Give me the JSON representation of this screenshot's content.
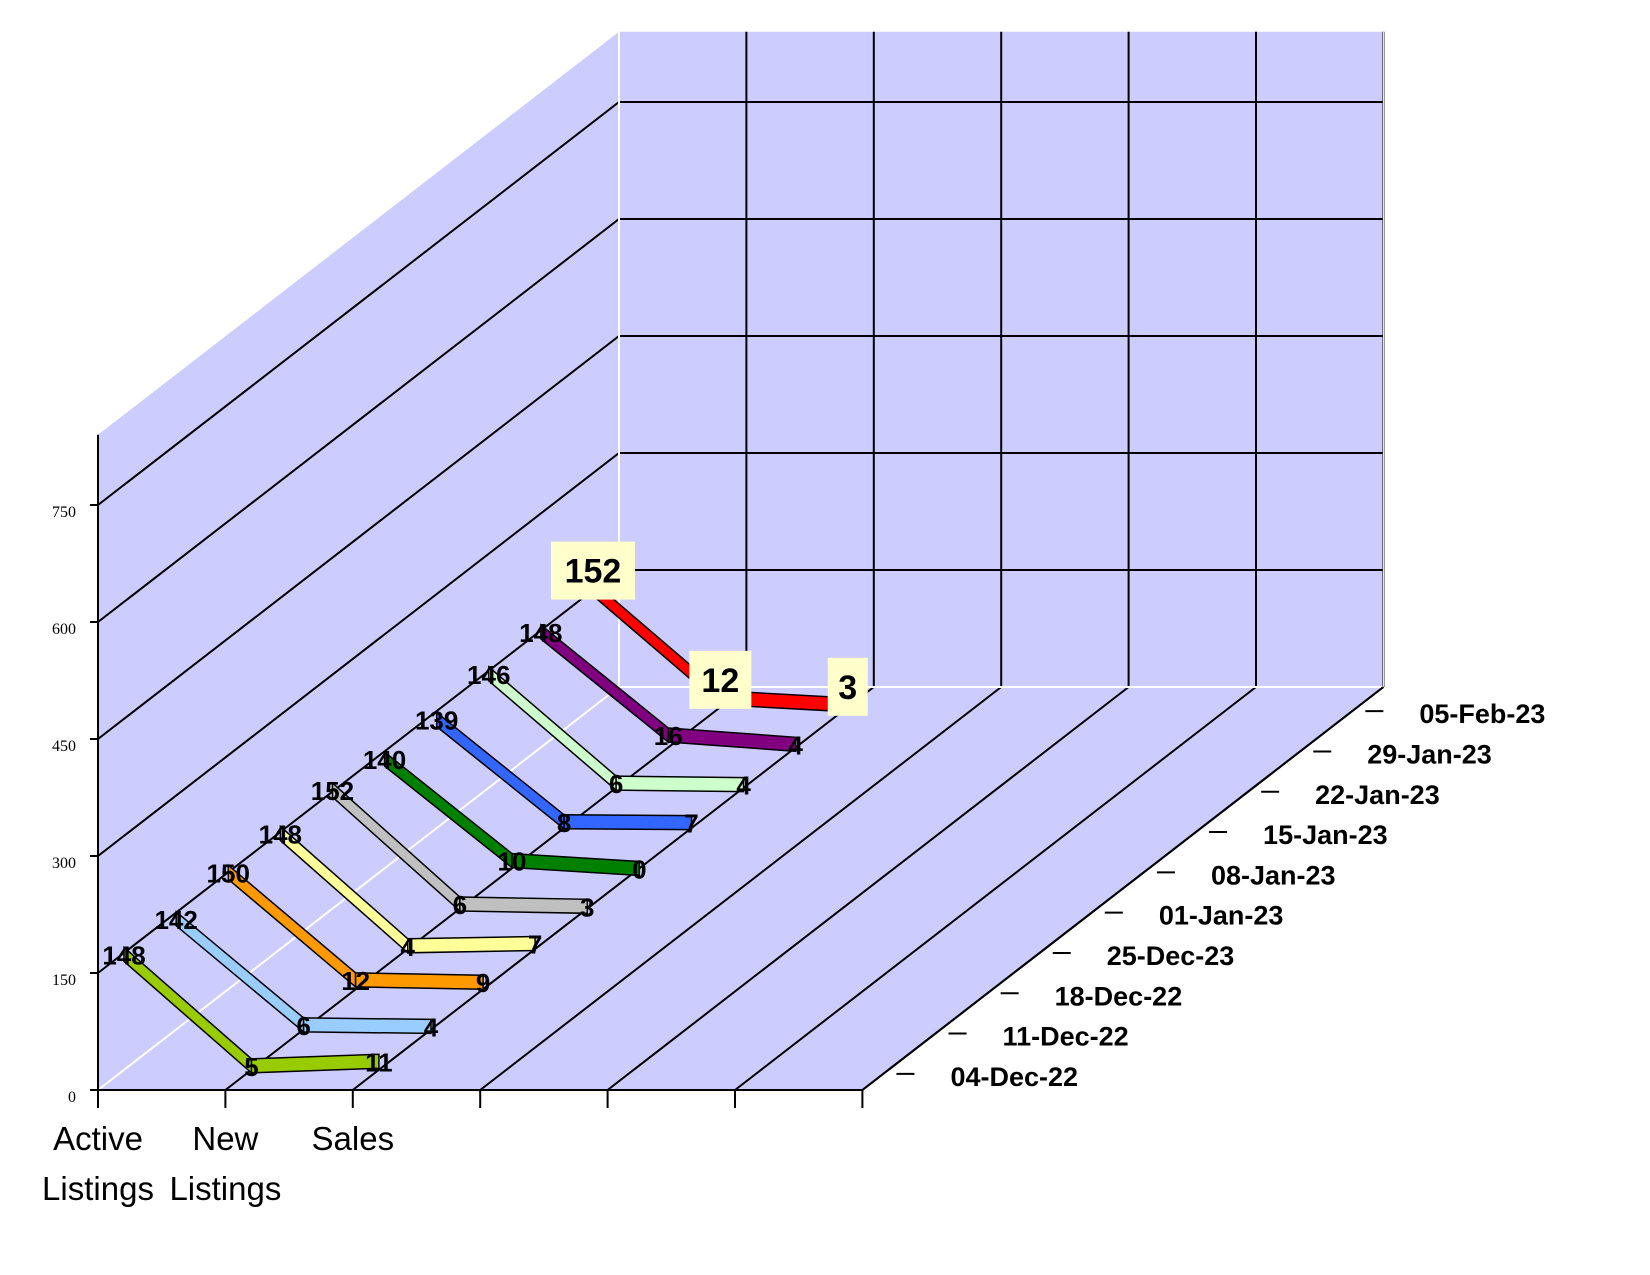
{
  "chart_data": {
    "type": "line",
    "categories": [
      "Active Listings",
      "New Listings",
      "Sales"
    ],
    "category_lines": [
      [
        "Active",
        "Listings"
      ],
      [
        "New",
        "Listings"
      ],
      [
        "Sales"
      ]
    ],
    "y_ticks": [
      0,
      150,
      300,
      450,
      600,
      750
    ],
    "ylim": [
      0,
      840
    ],
    "series": [
      {
        "name": "04-Dec-22",
        "color": "#99cc00",
        "values": [
          148,
          5,
          11
        ]
      },
      {
        "name": "11-Dec-22",
        "color": "#99ccff",
        "values": [
          142,
          6,
          4
        ]
      },
      {
        "name": "18-Dec-22",
        "color": "#ff9900",
        "values": [
          150,
          12,
          9
        ]
      },
      {
        "name": "25-Dec-23",
        "color": "#ffff99",
        "values": [
          148,
          4,
          7
        ]
      },
      {
        "name": "01-Jan-23",
        "color": "#c0c0c0",
        "values": [
          152,
          6,
          3
        ]
      },
      {
        "name": "08-Jan-23",
        "color": "#008000",
        "values": [
          140,
          10,
          0
        ]
      },
      {
        "name": "15-Jan-23",
        "color": "#3366ff",
        "values": [
          139,
          8,
          7
        ]
      },
      {
        "name": "22-Jan-23",
        "color": "#ccffcc",
        "values": [
          146,
          6,
          4
        ]
      },
      {
        "name": "29-Jan-23",
        "color": "#800080",
        "values": [
          148,
          16,
          4
        ]
      },
      {
        "name": "05-Feb-23",
        "color": "#ff0000",
        "values": [
          152,
          12,
          3
        ]
      }
    ],
    "highlighted_series": "05-Feb-23",
    "wall_color": "#ccccff",
    "grid": true,
    "legend": "none"
  }
}
